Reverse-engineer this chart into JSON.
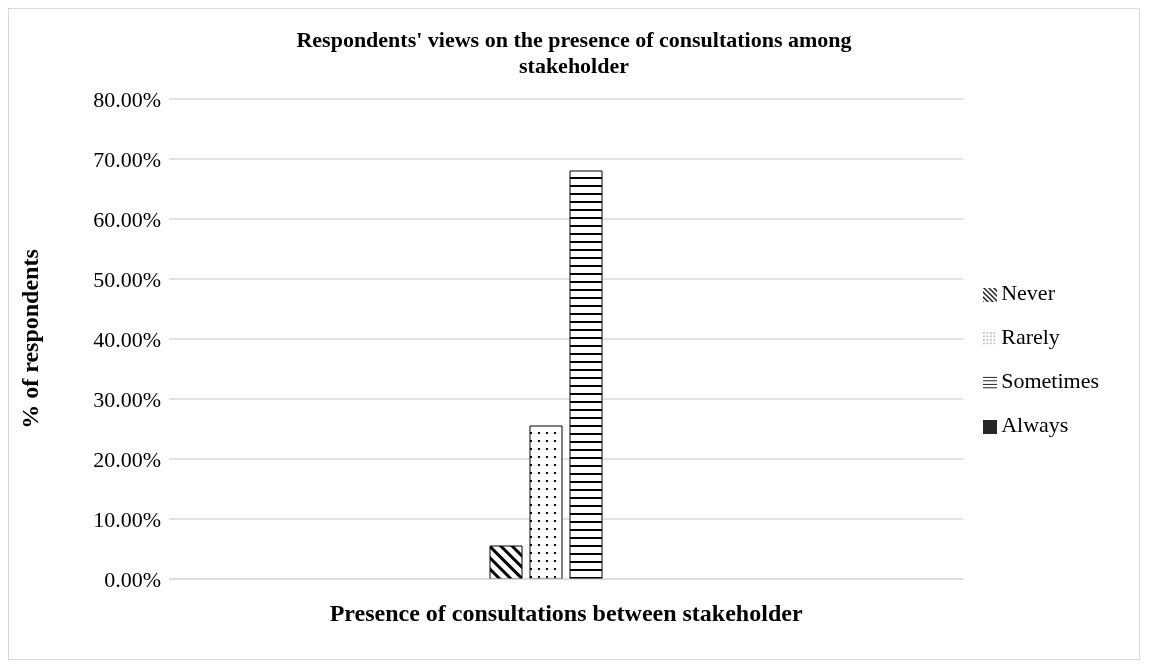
{
  "chart_data": {
    "type": "bar",
    "title": "Respondents' views on the presence of consultations among stakeholder",
    "xlabel": "Presence of consultations between stakeholder",
    "ylabel": "% of respondents",
    "categories": [
      null
    ],
    "series": [
      {
        "name": "Never",
        "color": "#000000",
        "values": [
          5.5
        ]
      },
      {
        "name": "Rarely",
        "color": "#000000",
        "values": [
          25.5
        ]
      },
      {
        "name": "Sometimes",
        "color": "#000000",
        "values": [
          68
        ]
      },
      {
        "name": "Always",
        "color": "#262626",
        "values": [
          0
        ]
      }
    ],
    "ylim": [
      0,
      80
    ],
    "yticks": [
      {
        "value": 0,
        "label": "0.00%"
      },
      {
        "value": 10,
        "label": "10.00%"
      },
      {
        "value": 20,
        "label": "20.00%"
      },
      {
        "value": 30,
        "label": "30.00%"
      },
      {
        "value": 40,
        "label": "40.00%"
      },
      {
        "value": 50,
        "label": "50.00%"
      },
      {
        "value": 60,
        "label": "60.00%"
      },
      {
        "value": 70,
        "label": "70.00%"
      },
      {
        "value": 80,
        "label": "80.00%"
      }
    ],
    "grid": "y",
    "legend": "right"
  }
}
